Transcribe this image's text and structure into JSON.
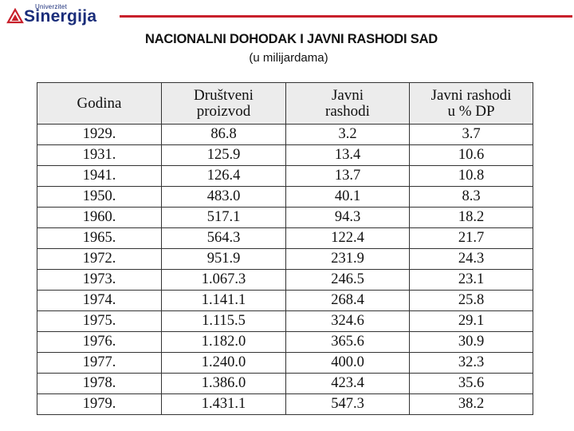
{
  "logo": {
    "small_text": "Univerzitet",
    "name": "Sinergija"
  },
  "title": "NACIONALNI DOHODAK I JAVNI RASHODI SAD",
  "subtitle": "(u milijardama)",
  "table": {
    "headers": [
      [
        "Godina"
      ],
      [
        "Društveni",
        "proizvod"
      ],
      [
        "Javni",
        "rashodi"
      ],
      [
        "Javni rashodi",
        "u % DP"
      ]
    ],
    "rows": [
      [
        "1929.",
        "86.8",
        "3.2",
        "3.7"
      ],
      [
        "1931.",
        "125.9",
        "13.4",
        "10.6"
      ],
      [
        "1941.",
        "126.4",
        "13.7",
        "10.8"
      ],
      [
        "1950.",
        "483.0",
        "40.1",
        "8.3"
      ],
      [
        "1960.",
        "517.1",
        "94.3",
        "18.2"
      ],
      [
        "1965.",
        "564.3",
        "122.4",
        "21.7"
      ],
      [
        "1972.",
        "951.9",
        "231.9",
        "24.3"
      ],
      [
        "1973.",
        "1.067.3",
        "246.5",
        "23.1"
      ],
      [
        "1974.",
        "1.141.1",
        "268.4",
        "25.8"
      ],
      [
        "1975.",
        "1.115.5",
        "324.6",
        "29.1"
      ],
      [
        "1976.",
        "1.182.0",
        "365.6",
        "30.9"
      ],
      [
        "1977.",
        "1.240.0",
        "400.0",
        "32.3"
      ],
      [
        "1978.",
        "1.386.0",
        "423.4",
        "35.6"
      ],
      [
        "1979.",
        "1.431.1",
        "547.3",
        "38.2"
      ]
    ]
  },
  "colors": {
    "brand_blue": "#1a2d7a",
    "brand_red": "#c8202b"
  }
}
